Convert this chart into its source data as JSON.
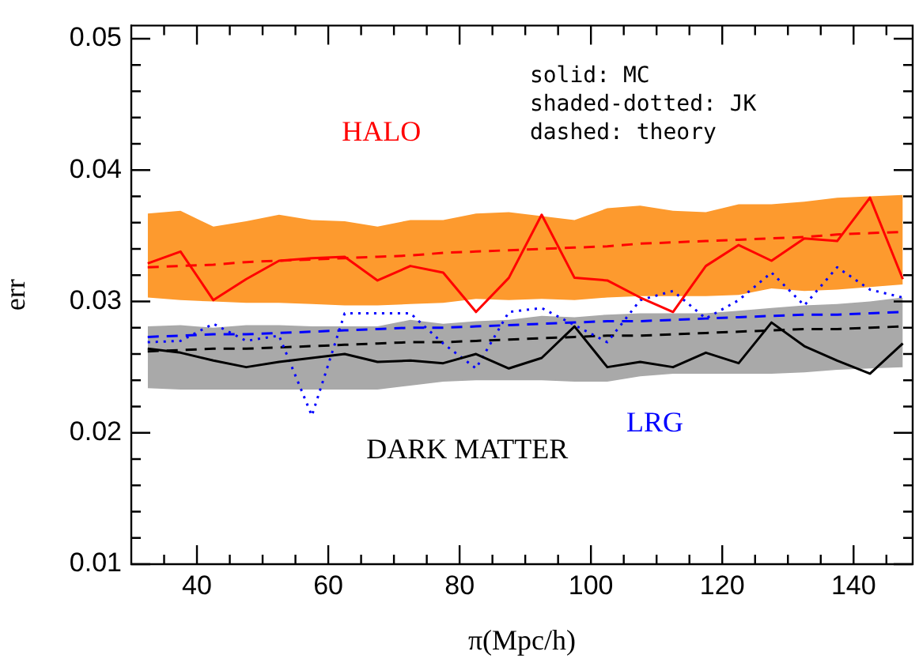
{
  "chart_data": {
    "type": "line",
    "xlabel": "π(Mpc/h)",
    "ylabel": "err",
    "x": [
      32.5,
      37.5,
      42.5,
      47.5,
      52.5,
      57.5,
      62.5,
      67.5,
      72.5,
      77.5,
      82.5,
      87.5,
      92.5,
      97.5,
      102.5,
      107.5,
      112.5,
      117.5,
      122.5,
      127.5,
      132.5,
      137.5,
      142.5,
      147.5
    ],
    "series": [
      {
        "name": "HALO",
        "color": "#ff0000",
        "line_style": "solid",
        "values": [
          0.0329,
          0.0338,
          0.0301,
          0.0317,
          0.0331,
          0.0333,
          0.0334,
          0.0316,
          0.0327,
          0.0322,
          0.0292,
          0.0318,
          0.0366,
          0.0318,
          0.0316,
          0.0303,
          0.0292,
          0.0327,
          0.0343,
          0.0331,
          0.0348,
          0.0346,
          0.0379,
          0.0317
        ],
        "lower": [
          0.0303,
          0.0301,
          0.03,
          0.0299,
          0.0299,
          0.0298,
          0.0297,
          0.0297,
          0.0298,
          0.0299,
          0.0302,
          0.0301,
          0.0302,
          0.0301,
          0.0303,
          0.0304,
          0.0304,
          0.0304,
          0.0305,
          0.031,
          0.0308,
          0.0309,
          0.0311,
          0.0313
        ],
        "upper": [
          0.0367,
          0.0369,
          0.0357,
          0.0361,
          0.0366,
          0.0362,
          0.0361,
          0.0357,
          0.0362,
          0.0362,
          0.0367,
          0.0368,
          0.0365,
          0.0362,
          0.0371,
          0.0373,
          0.0369,
          0.0368,
          0.0374,
          0.0374,
          0.0376,
          0.0379,
          0.038,
          0.0381
        ]
      },
      {
        "name": "DARK MATTER",
        "color": "#000000",
        "line_style": "solid",
        "values": [
          0.0264,
          0.0261,
          0.0255,
          0.025,
          0.0254,
          0.0257,
          0.026,
          0.0254,
          0.0255,
          0.0253,
          0.026,
          0.0249,
          0.0257,
          0.0281,
          0.025,
          0.0254,
          0.025,
          0.0261,
          0.0253,
          0.0284,
          0.0266,
          0.0255,
          0.0245,
          0.0268
        ],
        "lower": [
          0.0234,
          0.0233,
          0.0233,
          0.0233,
          0.0233,
          0.0233,
          0.0233,
          0.0233,
          0.0236,
          0.0239,
          0.024,
          0.024,
          0.024,
          0.0239,
          0.0239,
          0.0243,
          0.0245,
          0.0245,
          0.0245,
          0.0245,
          0.0246,
          0.0248,
          0.0249,
          0.025
        ],
        "upper": [
          0.0281,
          0.0282,
          0.028,
          0.0282,
          0.0282,
          0.0281,
          0.0281,
          0.0281,
          0.0286,
          0.0283,
          0.0285,
          0.0286,
          0.0289,
          0.0288,
          0.029,
          0.0291,
          0.0291,
          0.0291,
          0.0293,
          0.0295,
          0.0297,
          0.0298,
          0.03,
          0.0303
        ]
      },
      {
        "name": "LRG",
        "color": "#0000ff",
        "line_style": "dotted",
        "values": [
          0.0269,
          0.027,
          0.0283,
          0.027,
          0.0274,
          0.0213,
          0.0291,
          0.0291,
          0.0291,
          0.0268,
          0.0249,
          0.0292,
          0.0295,
          0.0282,
          0.0269,
          0.0301,
          0.0308,
          0.0287,
          0.0301,
          0.0322,
          0.0297,
          0.0326,
          0.0309,
          0.0303
        ]
      },
      {
        "color": "#ff0000",
        "line_style": "dashed",
        "values": [
          0.0326,
          0.0327,
          0.0328,
          0.033,
          0.0331,
          0.0332,
          0.0333,
          0.0334,
          0.0335,
          0.0337,
          0.0338,
          0.0339,
          0.034,
          0.0341,
          0.0342,
          0.0344,
          0.0345,
          0.0346,
          0.0347,
          0.0348,
          0.0349,
          0.0351,
          0.0352,
          0.0353
        ]
      },
      {
        "color": "#0000ff",
        "line_style": "dashed",
        "values": [
          0.0273,
          0.0274,
          0.0275,
          0.0275,
          0.0276,
          0.0277,
          0.0278,
          0.0279,
          0.028,
          0.028,
          0.0281,
          0.0282,
          0.0283,
          0.0284,
          0.0285,
          0.0285,
          0.0286,
          0.0287,
          0.0288,
          0.0289,
          0.029,
          0.029,
          0.0291,
          0.0292
        ]
      },
      {
        "color": "#000000",
        "line_style": "dashed",
        "values": [
          0.0262,
          0.0263,
          0.0264,
          0.0264,
          0.0265,
          0.0266,
          0.0267,
          0.0268,
          0.0269,
          0.0269,
          0.027,
          0.0271,
          0.0272,
          0.0273,
          0.0274,
          0.0274,
          0.0275,
          0.0276,
          0.0277,
          0.0278,
          0.0279,
          0.0279,
          0.028,
          0.0281
        ]
      }
    ],
    "annotations": [
      "solid: MC",
      "shaded-dotted: JK",
      "dashed: theory"
    ],
    "xlim": [
      30,
      149
    ],
    "ylim": [
      0.01,
      0.051
    ],
    "xticks": [
      {
        "value": 35,
        "label": null
      },
      40,
      {
        "value": 45,
        "label": null
      },
      {
        "value": 50,
        "label": null
      },
      {
        "value": 55,
        "label": null
      },
      60,
      {
        "value": 65,
        "label": null
      },
      {
        "value": 70,
        "label": null
      },
      {
        "value": 75,
        "label": null
      },
      80,
      {
        "value": 85,
        "label": null
      },
      {
        "value": 90,
        "label": null
      },
      {
        "value": 95,
        "label": null
      },
      100,
      {
        "value": 105,
        "label": null
      },
      {
        "value": 110,
        "label": null
      },
      {
        "value": 115,
        "label": null
      },
      120,
      {
        "value": 125,
        "label": null
      },
      {
        "value": 130,
        "label": null
      },
      {
        "value": 135,
        "label": null
      },
      140,
      {
        "value": 145,
        "label": null
      }
    ],
    "yticks": [
      0.01,
      {
        "value": 0.012,
        "label": null
      },
      {
        "value": 0.014,
        "label": null
      },
      {
        "value": 0.016,
        "label": null
      },
      {
        "value": 0.018,
        "label": null
      },
      0.02,
      {
        "value": 0.022,
        "label": null
      },
      {
        "value": 0.024,
        "label": null
      },
      {
        "value": 0.026,
        "label": null
      },
      {
        "value": 0.028,
        "label": null
      },
      0.03,
      {
        "value": 0.032,
        "label": null
      },
      {
        "value": 0.034,
        "label": null
      },
      {
        "value": 0.036,
        "label": null
      },
      {
        "value": 0.038,
        "label": null
      },
      0.04,
      {
        "value": 0.042,
        "label": null
      },
      {
        "value": 0.044,
        "label": null
      },
      {
        "value": 0.046,
        "label": null
      },
      {
        "value": 0.048,
        "label": null
      },
      0.05
    ],
    "legend": false
  }
}
